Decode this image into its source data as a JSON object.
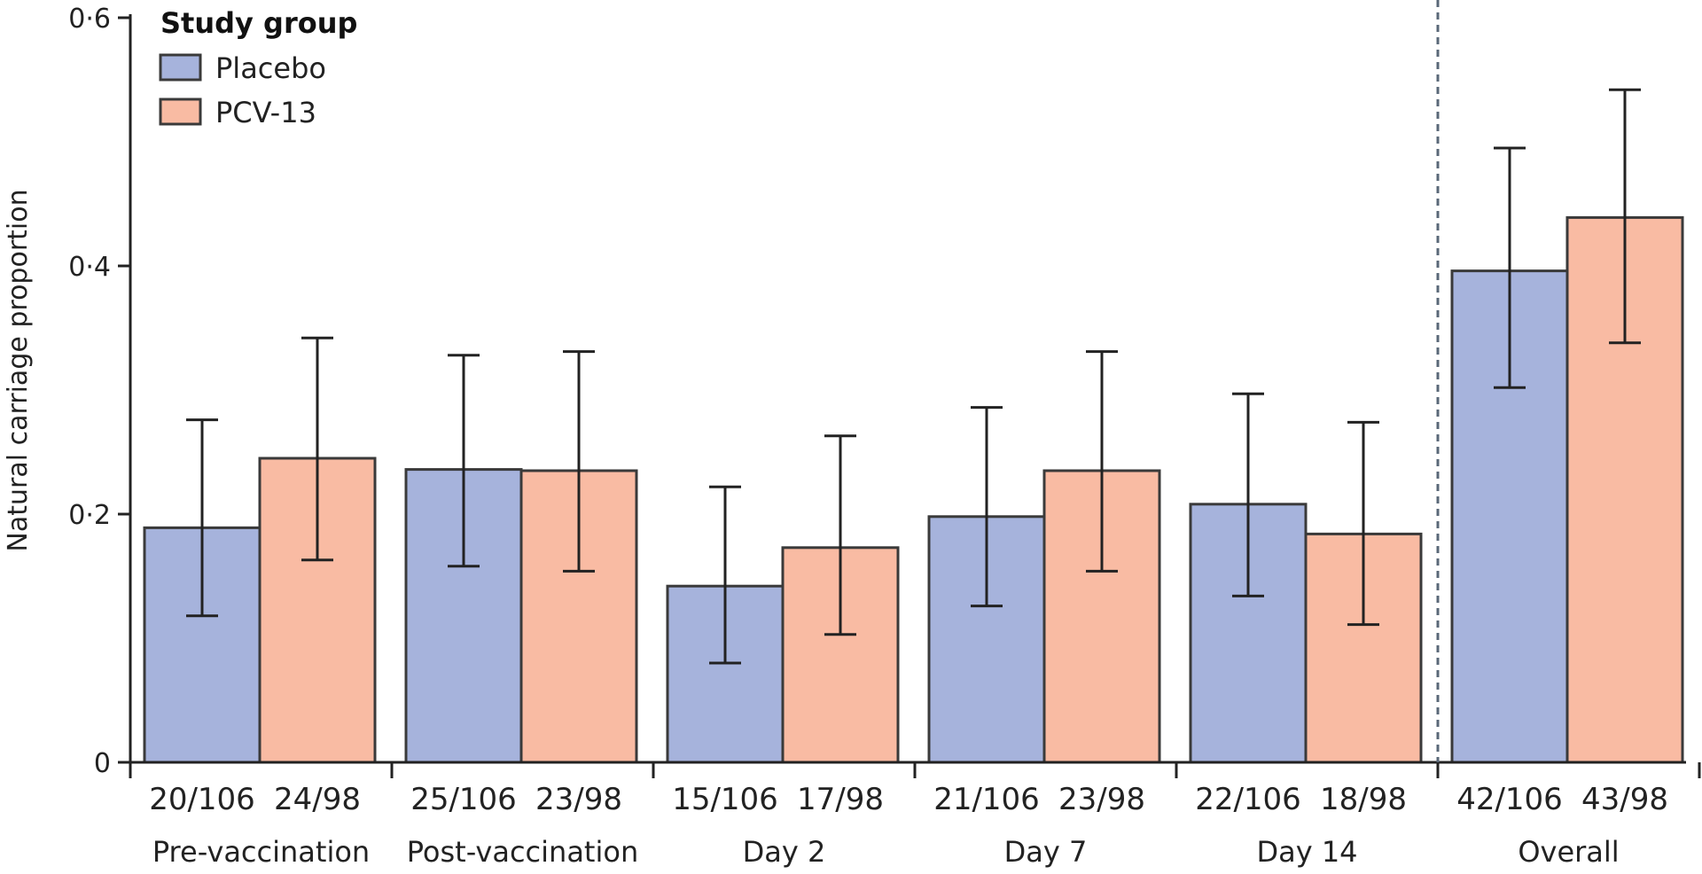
{
  "chart_data": {
    "type": "bar",
    "ylabel": "Natural carriage proportion",
    "ylim": [
      0,
      0.6
    ],
    "yticks": [
      {
        "value": 0,
        "label": "0"
      },
      {
        "value": 0.2,
        "label": "0·2"
      },
      {
        "value": 0.4,
        "label": "0·4"
      },
      {
        "value": 0.6,
        "label": "0·6"
      }
    ],
    "categories": [
      "Pre-vaccination",
      "Post-vaccination",
      "Day 2",
      "Day 7",
      "Day 14",
      "Overall"
    ],
    "legend": {
      "title": "Study group",
      "placement": "top-left"
    },
    "series": [
      {
        "name": "Placebo",
        "color": "#a6b3dc",
        "values": [
          0.189,
          0.236,
          0.142,
          0.198,
          0.208,
          0.396
        ],
        "ci_low": [
          0.118,
          0.158,
          0.08,
          0.126,
          0.134,
          0.302
        ],
        "ci_high": [
          0.276,
          0.328,
          0.222,
          0.286,
          0.297,
          0.495
        ],
        "counts": [
          "20/106",
          "25/106",
          "15/106",
          "21/106",
          "22/106",
          "42/106"
        ]
      },
      {
        "name": "PCV-13",
        "color": "#f9bba3",
        "values": [
          0.245,
          0.235,
          0.173,
          0.235,
          0.184,
          0.439
        ],
        "ci_low": [
          0.163,
          0.154,
          0.103,
          0.154,
          0.111,
          0.338
        ],
        "ci_high": [
          0.342,
          0.331,
          0.263,
          0.331,
          0.274,
          0.542
        ],
        "counts": [
          "24/98",
          "23/98",
          "17/98",
          "23/98",
          "18/98",
          "43/98"
        ]
      }
    ],
    "separator_before": "Overall",
    "bar_outline_color": "#3a3a3a",
    "separator_color": "#5a6878"
  }
}
